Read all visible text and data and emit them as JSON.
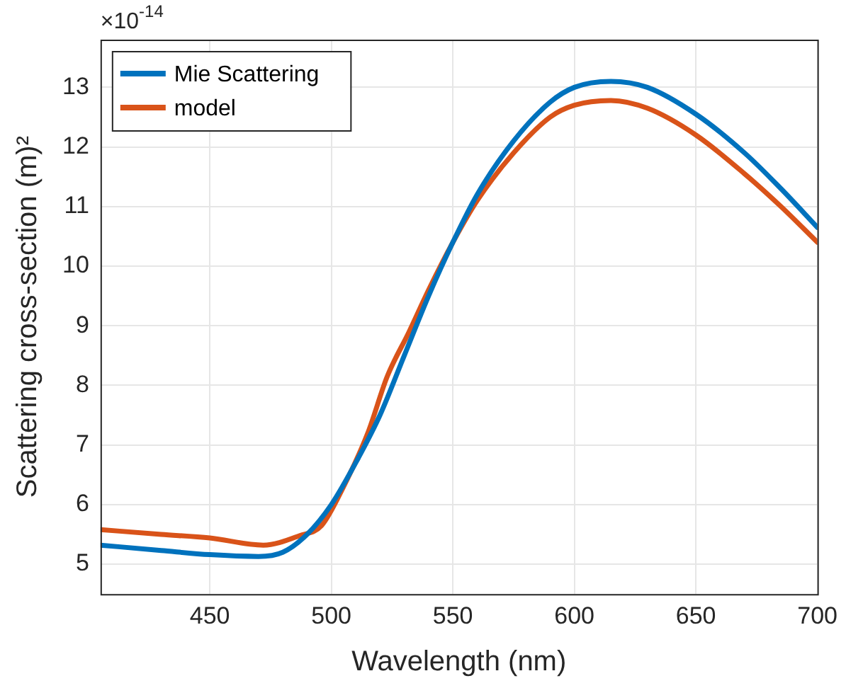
{
  "chart_data": {
    "type": "line",
    "xlabel": "Wavelength (nm)",
    "ylabel": "Scattering cross-section (m)²",
    "annotations": [
      "×10$^{-14}$"
    ],
    "xlim": [
      405,
      700
    ],
    "xticks": [
      450,
      500,
      550,
      600,
      650,
      700
    ],
    "ylim": [
      4.5,
      13.8
    ],
    "yticks": [
      5,
      6,
      7,
      8,
      9,
      10,
      11,
      12,
      13
    ],
    "grid": true,
    "legend": "top left",
    "marker": "none",
    "line_style": "solid",
    "series": [
      {
        "name": "Mie Scattering",
        "color": "#0072bd",
        "x": [
          405,
          430,
          450,
          470,
          480,
          490,
          500,
          510,
          520,
          530,
          540,
          550,
          560,
          575,
          590,
          600,
          615,
          630,
          650,
          670,
          685,
          700
        ],
        "values": [
          5.32,
          5.23,
          5.16,
          5.13,
          5.2,
          5.5,
          6.0,
          6.7,
          7.5,
          8.5,
          9.5,
          10.4,
          11.2,
          12.1,
          12.75,
          13.0,
          13.1,
          13.0,
          12.55,
          11.9,
          11.3,
          10.65
        ]
      },
      {
        "name": "model",
        "color": "#d95319",
        "x": [
          405,
          430,
          450,
          472,
          487,
          496,
          505,
          515,
          523,
          532,
          540,
          550,
          560,
          575,
          590,
          600,
          615,
          630,
          650,
          670,
          685,
          700
        ],
        "values": [
          5.58,
          5.5,
          5.44,
          5.32,
          5.48,
          5.65,
          6.3,
          7.2,
          8.15,
          8.9,
          9.6,
          10.4,
          11.1,
          11.9,
          12.5,
          12.7,
          12.78,
          12.65,
          12.2,
          11.55,
          11.0,
          10.4
        ]
      }
    ]
  }
}
